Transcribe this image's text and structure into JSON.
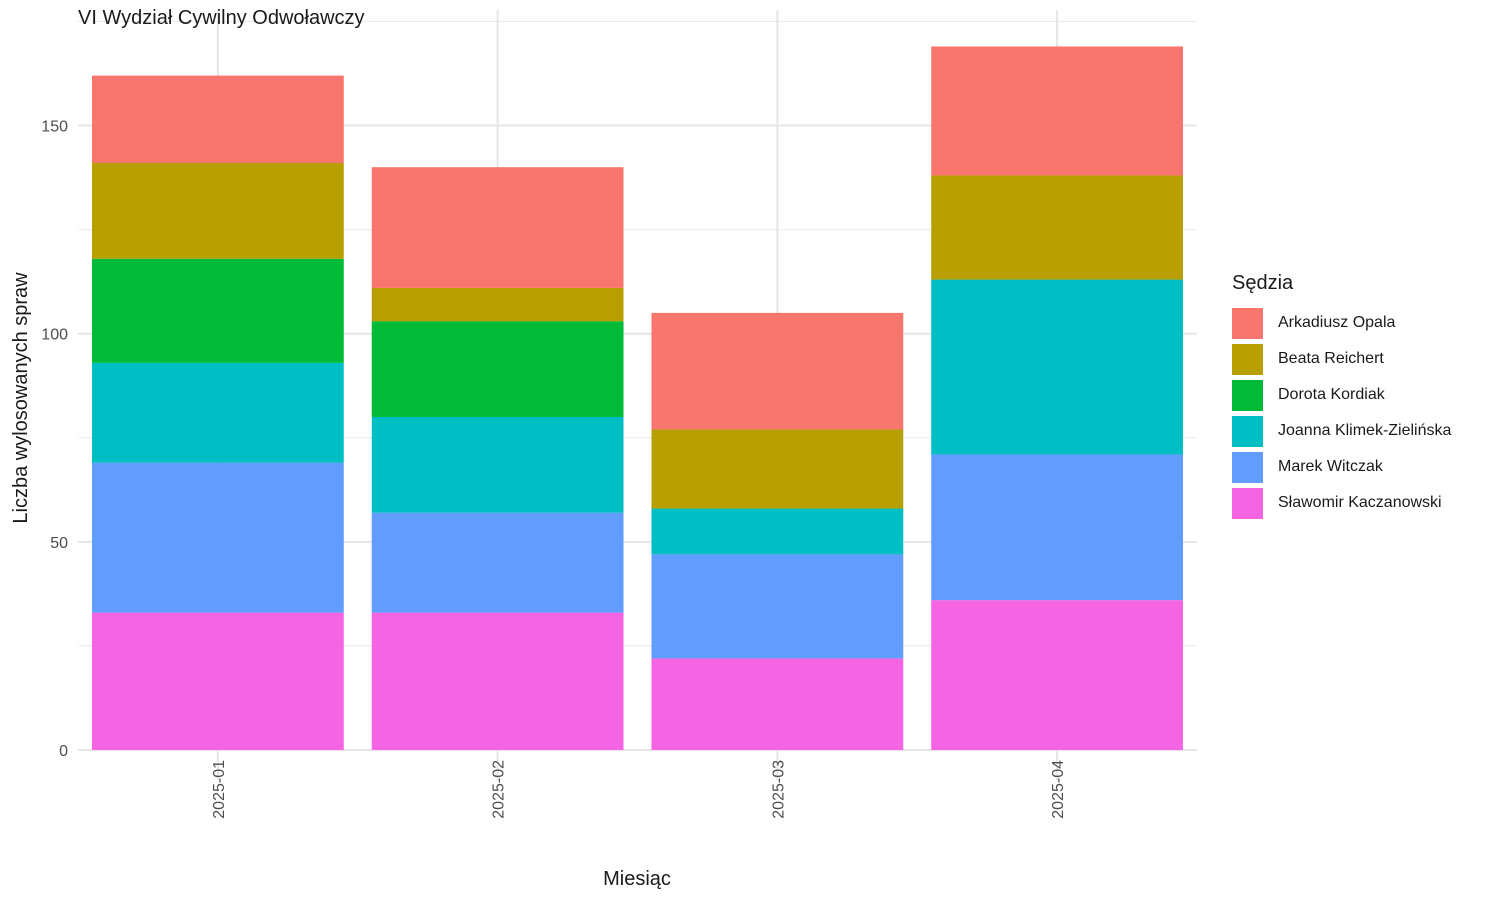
{
  "chart_data": {
    "type": "bar",
    "stacked": true,
    "title": "VI Wydział Cywilny Odwoławczy",
    "xlabel": "Miesiąc",
    "ylabel": "Liczba wylosowanych spraw",
    "categories": [
      "2025-01",
      "2025-02",
      "2025-03",
      "2025-04"
    ],
    "ylim": [
      0,
      175
    ],
    "yticks": [
      0,
      50,
      100,
      150
    ],
    "grid": true,
    "legend_title": "Sędzia",
    "legend_position": "right",
    "series": [
      {
        "name": "Arkadiusz Opala",
        "color": "#F8766D",
        "values": [
          21,
          29,
          28,
          31
        ]
      },
      {
        "name": "Beata Reichert",
        "color": "#B79F00",
        "values": [
          23,
          8,
          19,
          25
        ]
      },
      {
        "name": "Dorota Kordiak",
        "color": "#00BA38",
        "values": [
          25,
          23,
          0,
          0
        ]
      },
      {
        "name": "Joanna Klimek-Zielińska",
        "color": "#00BFC4",
        "values": [
          24,
          23,
          11,
          42
        ]
      },
      {
        "name": "Marek Witczak",
        "color": "#619CFF",
        "values": [
          36,
          24,
          25,
          35
        ]
      },
      {
        "name": "Sławomir Kaczanowski",
        "color": "#F564E3",
        "values": [
          33,
          33,
          22,
          36
        ]
      }
    ]
  }
}
